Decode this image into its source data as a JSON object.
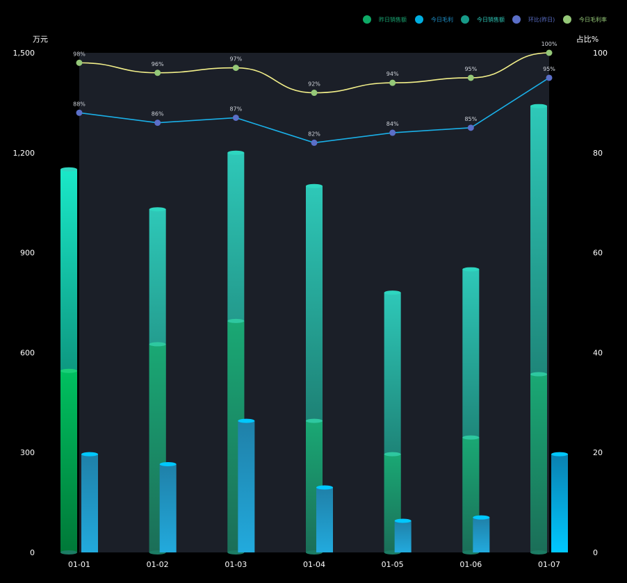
{
  "chart_data": {
    "type": "bar",
    "categories": [
      "01-01",
      "01-02",
      "01-03",
      "01-04",
      "01-05",
      "01-06",
      "01-07"
    ],
    "y_left": {
      "unit": "万元",
      "ticks": [
        "0",
        "300",
        "600",
        "900",
        "1,200",
        "1,500"
      ],
      "range": [
        0,
        1500
      ]
    },
    "y_right": {
      "unit": "占比%",
      "ticks": [
        "0",
        "20",
        "40",
        "60",
        "80",
        "100"
      ],
      "range": [
        0,
        100
      ]
    },
    "series": [
      {
        "name": "昨日销售额",
        "type": "bar",
        "values": [
          545,
          625,
          695,
          395,
          295,
          345,
          535
        ]
      },
      {
        "name": "今日毛利",
        "type": "bar",
        "values": [
          295,
          265,
          395,
          195,
          95,
          105,
          295
        ]
      },
      {
        "name": "今日销售额",
        "type": "bar-background",
        "values": [
          1150,
          1030,
          1200,
          1100,
          780,
          850,
          1340
        ]
      },
      {
        "name": "环比(昨日)",
        "type": "line",
        "axis": "right",
        "values": [
          88,
          86,
          87,
          82,
          84,
          85,
          95
        ],
        "labels": [
          "88%",
          "86%",
          "87%",
          "82%",
          "84%",
          "85%",
          "95%"
        ]
      },
      {
        "name": "今日毛利率",
        "type": "line",
        "axis": "right",
        "values": [
          98,
          96,
          97,
          92,
          94,
          95,
          100
        ],
        "labels": [
          "98%",
          "96%",
          "97%",
          "92%",
          "94%",
          "95%",
          "100%"
        ]
      }
    ],
    "legend_position": "top-right",
    "colors": {
      "yesterday_sales": "#1aa874",
      "yesterday_sales_first": "#00b050",
      "today_profit": "#1e90c8",
      "today_profit_cap": "#00c8ff",
      "today_sales_top": "#2ed6c0",
      "today_sales_bottom": "#0a4a3e",
      "mom_line": "#1ab0e8",
      "mom_dot": "#5b6fc8",
      "margin_line": "#f3f08a",
      "margin_dot": "#95c878",
      "plot_bg": "#1b1f28"
    }
  }
}
